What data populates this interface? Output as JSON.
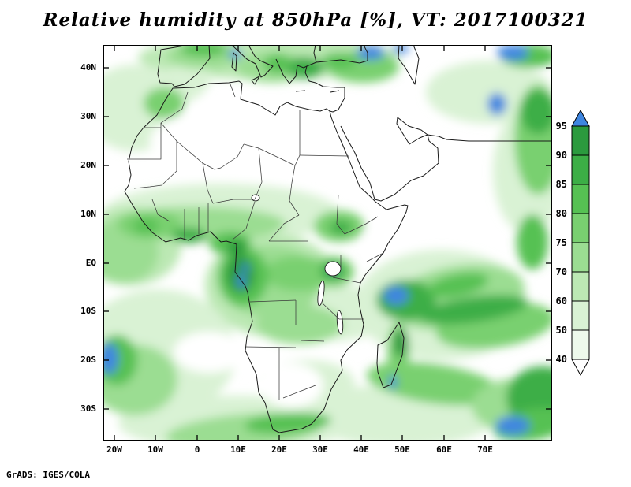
{
  "title": "Relative humidity at 850hPa [%], VT: 2017100321",
  "attribution": "GrADS: IGES/COLA",
  "axes": {
    "x_labels": [
      "20W",
      "10W",
      "0",
      "10E",
      "20E",
      "30E",
      "40E",
      "50E",
      "60E",
      "70E"
    ],
    "y_labels": [
      "40N",
      "30N",
      "20N",
      "10N",
      "EQ",
      "10S",
      "20S",
      "30S"
    ]
  },
  "colorbar": {
    "labels_top_to_bottom": [
      "95",
      "90",
      "85",
      "80",
      "75",
      "70",
      "60",
      "50",
      "40"
    ],
    "colors_top_to_bottom": [
      "#3f86e0",
      "#2b9a3e",
      "#3cae46",
      "#56c153",
      "#79d070",
      "#9bdd92",
      "#bce8b4",
      "#d9f2d4",
      "#eef9ec",
      "#ffffff"
    ]
  },
  "chart_data": {
    "type": "heatmap",
    "subtype": "filled_contour_map",
    "title": "Relative humidity at 850hPa [%], VT: 2017100321",
    "variable": "Relative humidity",
    "pressure_level": "850hPa",
    "units": "%",
    "valid_time": "2017100321",
    "domain": {
      "lon_ticks_deg": [
        -20,
        -10,
        0,
        10,
        20,
        30,
        40,
        50,
        60,
        70
      ],
      "lat_ticks_deg": [
        40,
        30,
        20,
        10,
        0,
        -10,
        -20,
        -30
      ],
      "approx_lon_range_deg": [
        -23,
        86
      ],
      "approx_lat_range_deg": [
        -36,
        45
      ],
      "region": "Africa, southern Europe, Middle East, western Indian Ocean"
    },
    "contour_levels": [
      40,
      50,
      60,
      70,
      75,
      80,
      85,
      90,
      95
    ],
    "palette": [
      {
        "range": "<40",
        "color": "#ffffff"
      },
      {
        "range": "40-50",
        "color": "#eef9ec"
      },
      {
        "range": "50-60",
        "color": "#d9f2d4"
      },
      {
        "range": "60-70",
        "color": "#bce8b4"
      },
      {
        "range": "70-75",
        "color": "#9bdd92"
      },
      {
        "range": "75-80",
        "color": "#79d070"
      },
      {
        "range": "80-85",
        "color": "#56c153"
      },
      {
        "range": "85-90",
        "color": "#3cae46"
      },
      {
        "range": "90-95",
        "color": "#2b9a3e"
      },
      {
        "range": ">95",
        "color": "#3f86e0"
      }
    ],
    "approx_field_readings": [
      {
        "region": "Sahara Desert and Arabian Peninsula",
        "approx_rh_pct": "<40"
      },
      {
        "region": "West African monsoon band 5-15N",
        "approx_rh_pct": "50-75"
      },
      {
        "region": "Guinea coast / Sierra Leone",
        "approx_rh_pct": "80-90"
      },
      {
        "region": "Niger Delta / Cameroon coast",
        "approx_rh_pct": "85-95"
      },
      {
        "region": "Gabon / Congo basin core",
        "approx_rh_pct": "90->95 (local >95)"
      },
      {
        "region": "Lake Victoria region",
        "approx_rh_pct": "85->95"
      },
      {
        "region": "Ethiopian highlands",
        "approx_rh_pct": "75-90"
      },
      {
        "region": "Horn of Africa / Somalia",
        "approx_rh_pct": "40-55"
      },
      {
        "region": "Western Indian Ocean 5S-20S",
        "approx_rh_pct": "70-90, patch >95 near 48E 7S"
      },
      {
        "region": "Madagascar east coast",
        "approx_rh_pct": "85-95, spot >95 in south"
      },
      {
        "region": "South Atlantic near 20W 19S",
        "approx_rh_pct": ">95 patch in 80-90 band"
      },
      {
        "region": "Southern Ocean swirls 25-35S",
        "approx_rh_pct": "70-95, >95 bottom right"
      },
      {
        "region": "Kalahari / Namib interior",
        "approx_rh_pct": "40-60"
      },
      {
        "region": "Mediterranean / southern Europe",
        "approx_rh_pct": "60-90, >95 spots (Liguria, Black Sea, Caspian)"
      },
      {
        "region": "NW Atlantic corner of map",
        "approx_rh_pct": "50-70"
      }
    ],
    "legend_position": "right",
    "grid": false
  }
}
